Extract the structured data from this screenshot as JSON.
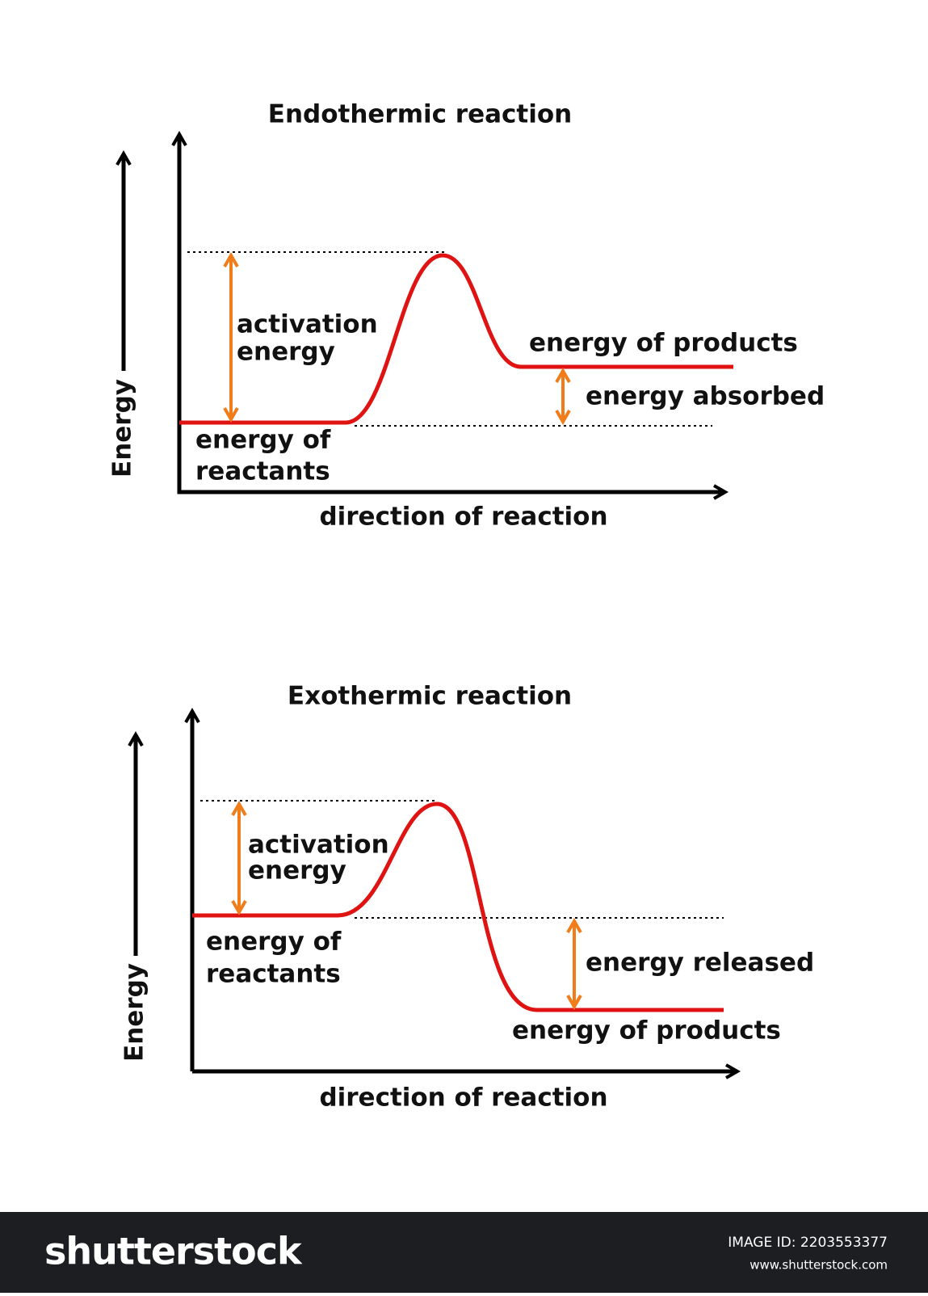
{
  "diagrams": [
    {
      "title": "Endothermic reaction",
      "y_axis_label": "Energy",
      "x_axis_label": "direction of reaction",
      "activation_label": [
        "activation",
        "energy"
      ],
      "reactants_label": [
        "energy of",
        "reactants"
      ],
      "products_label": "energy of products",
      "change_label": "energy absorbed"
    },
    {
      "title": "Exothermic reaction",
      "y_axis_label": "Energy",
      "x_axis_label": "direction of reaction",
      "activation_label": [
        "activation",
        "energy"
      ],
      "reactants_label": [
        "energy of",
        "reactants"
      ],
      "products_label": "energy of products",
      "change_label": "energy released"
    }
  ],
  "footer": {
    "logo": "shutterstock",
    "image_id": "IMAGE ID: 2203553377",
    "url": "www.shutterstock.com"
  }
}
